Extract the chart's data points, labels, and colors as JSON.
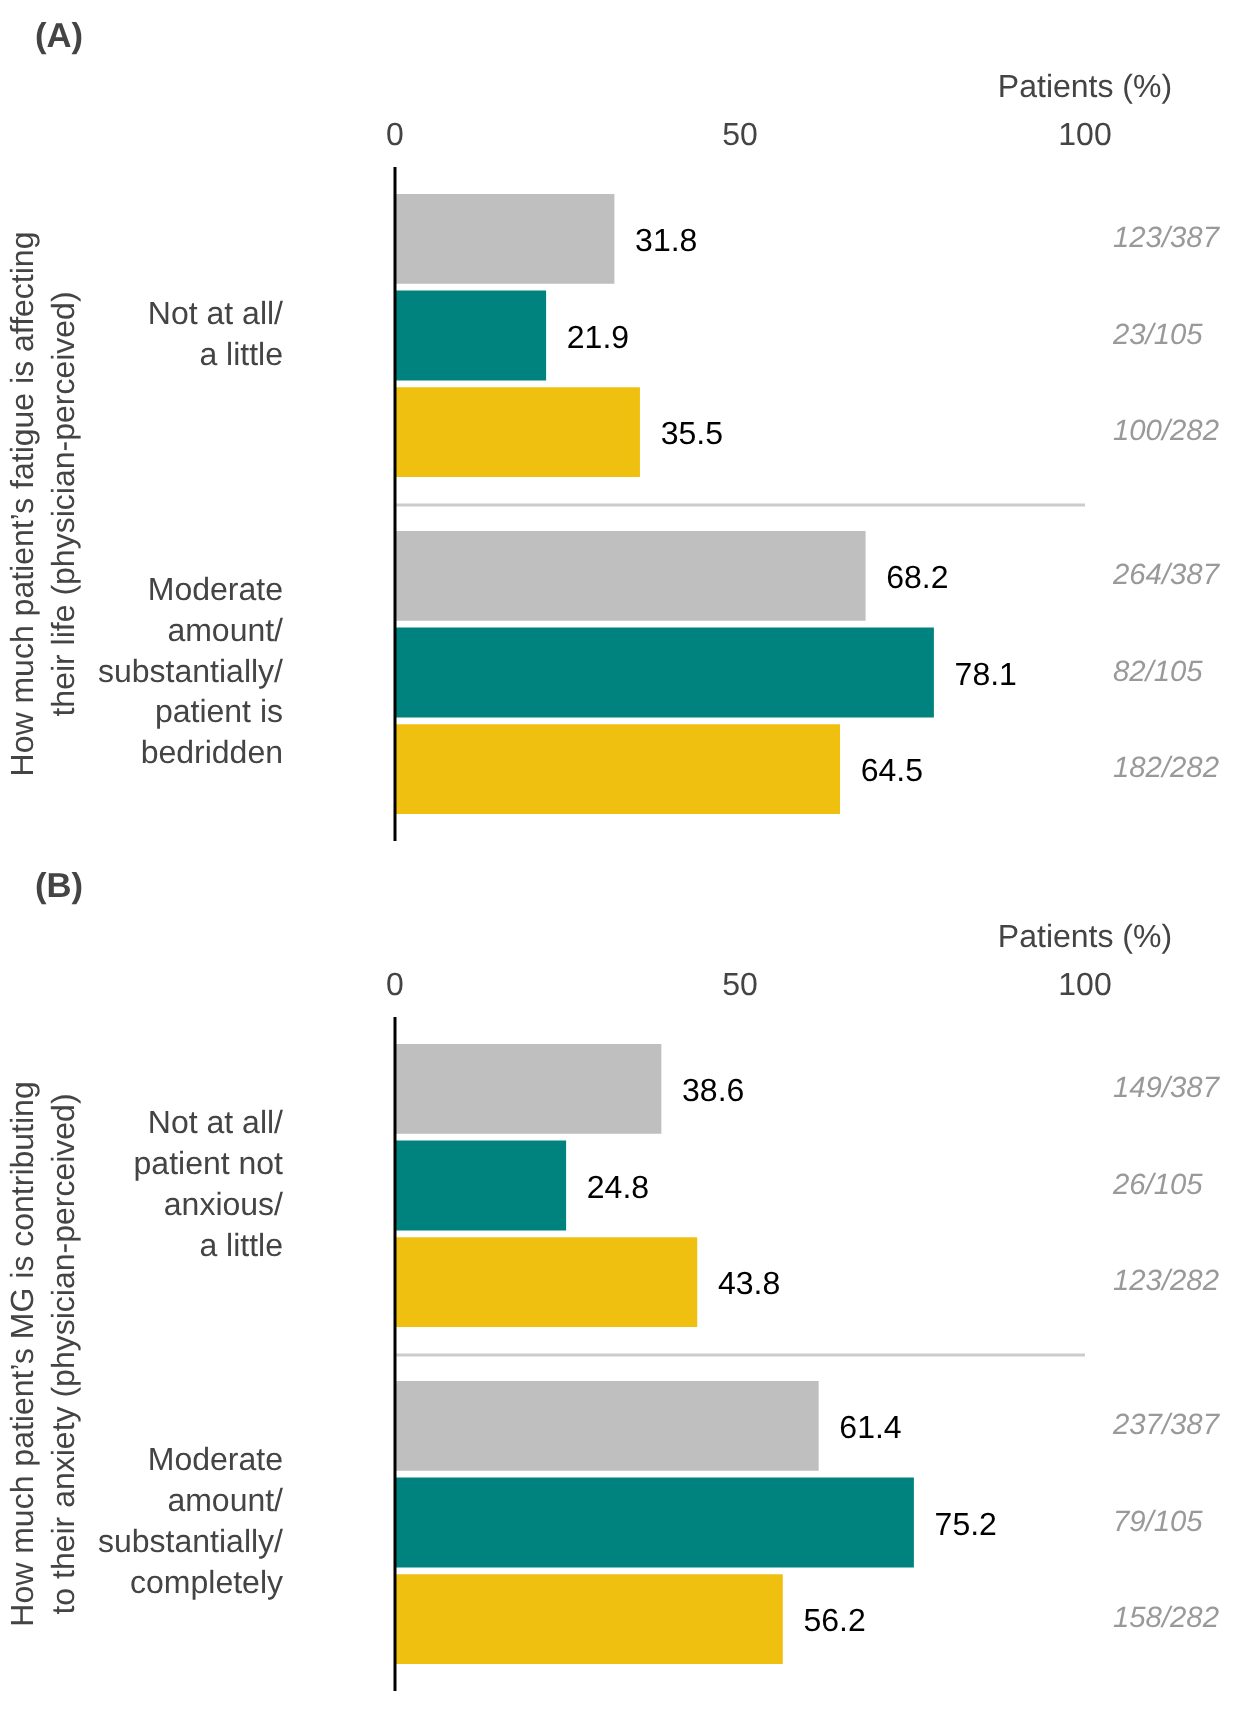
{
  "chart_data": [
    {
      "type": "bar",
      "orientation": "horizontal",
      "title": "(A)",
      "xlabel": "Patients (%)",
      "ylabel": "How much patient’s fatigue is affecting\ntheir life (physician-perceived)",
      "categories": [
        "Not at all/\na little",
        "Moderate\namount/\nsubstantially/\npatient is\nbedridden"
      ],
      "series": [
        {
          "color": "#bfbfbf",
          "values": [
            31.8,
            68.2
          ]
        },
        {
          "color": "#00827f",
          "values": [
            21.9,
            78.1
          ]
        },
        {
          "color": "#f0c010",
          "values": [
            35.5,
            64.5
          ]
        }
      ],
      "xlim": [
        0,
        100
      ],
      "xticks": [
        0,
        50,
        100
      ],
      "grid": "y",
      "data_labels": true,
      "annotations": [
        "123/387",
        "23/105",
        "100/282",
        "264/387",
        "82/105",
        "182/282"
      ]
    },
    {
      "type": "bar",
      "orientation": "horizontal",
      "title": "(B)",
      "xlabel": "Patients (%)",
      "ylabel": "How much patient’s MG is contributing\nto their anxiety (physician-perceived)",
      "categories": [
        "Not at all/\npatient not\nanxious/\na little",
        "Moderate\namount/\nsubstantially/\ncompletely"
      ],
      "series": [
        {
          "color": "#bfbfbf",
          "values": [
            38.6,
            61.4
          ]
        },
        {
          "color": "#00827f",
          "values": [
            24.8,
            75.2
          ]
        },
        {
          "color": "#f0c010",
          "values": [
            43.8,
            56.2
          ]
        }
      ],
      "xlim": [
        0,
        100
      ],
      "xticks": [
        0,
        50,
        100
      ],
      "grid": "y",
      "data_labels": true,
      "annotations": [
        "149/387",
        "26/105",
        "123/282",
        "237/387",
        "79/105",
        "158/282"
      ]
    }
  ]
}
